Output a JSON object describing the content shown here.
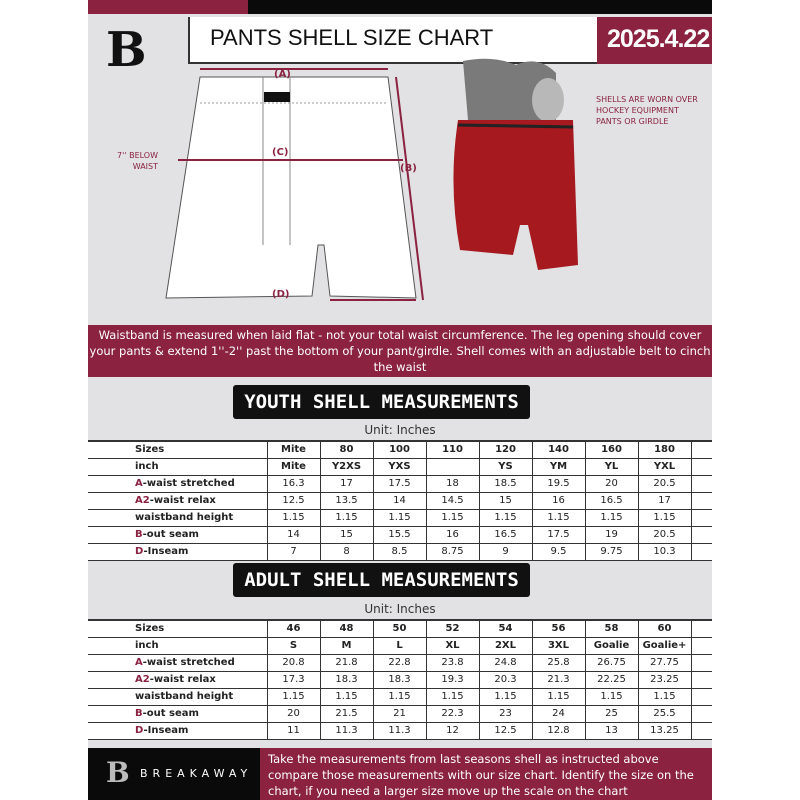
{
  "header": {
    "title": "PANTS SHELL SIZE CHART",
    "date": "2025.4.22",
    "logo_letter": "B"
  },
  "diagram": {
    "label_a": "(A)",
    "label_b": "(B)",
    "label_c": "(C)",
    "label_d": "(D)",
    "below_waist": "7'' BELOW WAIST",
    "note": "SHELLS ARE WORN OVER HOCKEY EQUIPMENT PANTS OR GIRDLE"
  },
  "band_text": "Waistband is measured when laid flat - not your total waist circumference. The leg opening should cover your pants & extend 1''-2'' past the bottom of your pant/girdle. Shell comes with an adjustable belt to cinch the waist",
  "youth": {
    "heading": "YOUTH SHELL MEASUREMENTS",
    "unit": "Unit: Inches",
    "rows": [
      {
        "prefix": "",
        "label": "Sizes",
        "values": [
          "Mite",
          "80",
          "100",
          "110",
          "120",
          "140",
          "160",
          "180"
        ]
      },
      {
        "prefix": "",
        "label": "inch",
        "values": [
          "Mite",
          "Y2XS",
          "YXS",
          "",
          "YS",
          "YM",
          "YL",
          "YXL"
        ]
      },
      {
        "prefix": "A",
        "label": "-waist stretched",
        "values": [
          "16.3",
          "17",
          "17.5",
          "18",
          "18.5",
          "19.5",
          "20",
          "20.5"
        ]
      },
      {
        "prefix": "A2",
        "label": "-waist relax",
        "values": [
          "12.5",
          "13.5",
          "14",
          "14.5",
          "15",
          "16",
          "16.5",
          "17"
        ]
      },
      {
        "prefix": "",
        "label": "waistband height",
        "values": [
          "1.15",
          "1.15",
          "1.15",
          "1.15",
          "1.15",
          "1.15",
          "1.15",
          "1.15"
        ]
      },
      {
        "prefix": "B",
        "label": "-out seam",
        "values": [
          "14",
          "15",
          "15.5",
          "16",
          "16.5",
          "17.5",
          "19",
          "20.5"
        ]
      },
      {
        "prefix": "D",
        "label": "-Inseam",
        "values": [
          "7",
          "8",
          "8.5",
          "8.75",
          "9",
          "9.5",
          "9.75",
          "10.3"
        ]
      }
    ]
  },
  "adult": {
    "heading": "ADULT SHELL MEASUREMENTS",
    "unit": "Unit: Inches",
    "rows": [
      {
        "prefix": "",
        "label": "Sizes",
        "values": [
          "46",
          "48",
          "50",
          "52",
          "54",
          "56",
          "58",
          "60"
        ]
      },
      {
        "prefix": "",
        "label": "inch",
        "values": [
          "S",
          "M",
          "L",
          "XL",
          "2XL",
          "3XL",
          "Goalie",
          "Goalie+"
        ]
      },
      {
        "prefix": "A",
        "label": "-waist stretched",
        "values": [
          "20.8",
          "21.8",
          "22.8",
          "23.8",
          "24.8",
          "25.8",
          "26.75",
          "27.75"
        ]
      },
      {
        "prefix": "A2",
        "label": "-waist relax",
        "values": [
          "17.3",
          "18.3",
          "18.3",
          "19.3",
          "20.3",
          "21.3",
          "22.25",
          "23.25"
        ]
      },
      {
        "prefix": "",
        "label": "waistband height",
        "values": [
          "1.15",
          "1.15",
          "1.15",
          "1.15",
          "1.15",
          "1.15",
          "1.15",
          "1.15"
        ]
      },
      {
        "prefix": "B",
        "label": "-out seam",
        "values": [
          "20",
          "21.5",
          "21",
          "22.3",
          "23",
          "24",
          "25",
          "25.5"
        ]
      },
      {
        "prefix": "D",
        "label": "-Inseam",
        "values": [
          "11",
          "11.3",
          "11.3",
          "12",
          "12.5",
          "12.8",
          "13",
          "13.25"
        ]
      }
    ]
  },
  "footer": {
    "brand": "BREAKAWAY",
    "text": "Take the measurements from last seasons shell as instructed above compare those measurements  with our size chart. Identify the size on the chart, if you need a larger size move up the scale on the chart"
  },
  "colors": {
    "brand": "#8a2240",
    "black": "#0a0a0a",
    "background": "#e2e2e4"
  }
}
